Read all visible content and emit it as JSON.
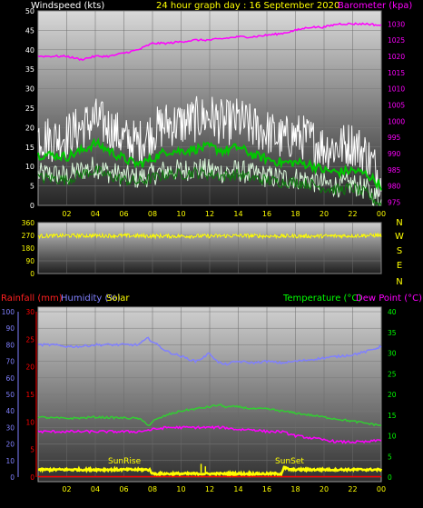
{
  "colors": {
    "windspeed": "#ffffff",
    "wind_avg": "#00c800",
    "wind_gust_fill": "#d8f5d8",
    "barometer": "#ff00ff",
    "wind_dir": "#ffff00",
    "rainfall": "#ff0000",
    "humidity": "#8080ff",
    "solar": "#ffff00",
    "temperature": "#00ff00",
    "temperature_line": "#33cc33",
    "dew_point": "#ff00ff",
    "panel_bg_top": "#e0e0e0",
    "panel_bg_bottom": "#282828"
  },
  "header": {
    "windspeed_label": "Windspeed (kts)",
    "title": "24 hour graph day : 16 September 2020",
    "barometer_label": "Barometer (kpa)"
  },
  "legend2": {
    "rainfall": "Rainfall (mm)",
    "humidity": "Humidity (%)",
    "solar": "Solar",
    "temperature": "Temperature (°C)",
    "dew_point": "Dew Point (°C)"
  },
  "annotations": {
    "sunrise": "SunRise",
    "sunset": "SunSet"
  },
  "chart_data": [
    {
      "type": "line",
      "name": "wind-barometer",
      "x_ticks": [
        "02",
        "04",
        "06",
        "08",
        "10",
        "12",
        "14",
        "16",
        "18",
        "20",
        "22",
        "00"
      ],
      "x_range": [
        0,
        24
      ],
      "y_left": {
        "label": "Windspeed (kts)",
        "range": [
          0,
          50
        ],
        "ticks": [
          0,
          5,
          10,
          15,
          20,
          25,
          30,
          35,
          40,
          45,
          50
        ]
      },
      "y_right": {
        "label": "Barometer (kpa)",
        "range": [
          974,
          1034
        ],
        "ticks": [
          975,
          980,
          985,
          990,
          995,
          1000,
          1005,
          1010,
          1015,
          1020,
          1025,
          1030
        ]
      },
      "series": [
        {
          "name": "Barometer",
          "axis": "right",
          "x": [
            0,
            1,
            2,
            3,
            4,
            5,
            6,
            7,
            8,
            9,
            10,
            11,
            12,
            13,
            14,
            15,
            16,
            17,
            18,
            19,
            20,
            21,
            22,
            23,
            24
          ],
          "y": [
            1020,
            1020,
            1020,
            1019,
            1020,
            1020,
            1021,
            1022,
            1024,
            1024,
            1024.5,
            1025,
            1025,
            1025.5,
            1026,
            1026,
            1026.5,
            1027,
            1028,
            1029,
            1029,
            1030,
            1030,
            1030,
            1029.5
          ]
        },
        {
          "name": "Windspeed",
          "axis": "left",
          "x": [
            0,
            1,
            2,
            3,
            4,
            5,
            6,
            7,
            8,
            9,
            10,
            11,
            12,
            13,
            14,
            15,
            16,
            17,
            18,
            19,
            20,
            21,
            22,
            23,
            24
          ],
          "y": [
            18,
            17,
            18,
            20,
            22,
            20,
            17,
            16,
            19,
            21,
            21,
            22,
            23,
            21,
            22,
            20,
            19,
            17,
            18,
            17,
            15,
            15,
            16,
            13,
            7
          ]
        },
        {
          "name": "Average",
          "axis": "left",
          "x": [
            0,
            1,
            2,
            3,
            4,
            5,
            6,
            7,
            8,
            9,
            10,
            11,
            12,
            13,
            14,
            15,
            16,
            17,
            18,
            19,
            20,
            21,
            22,
            23,
            24
          ],
          "y": [
            13,
            13,
            12.5,
            14,
            16,
            14,
            12,
            10.5,
            12,
            14,
            14,
            14.5,
            15,
            14,
            15,
            13,
            12,
            11,
            11,
            10.5,
            9,
            8.5,
            9,
            8,
            5
          ]
        },
        {
          "name": "Gust",
          "axis": "left",
          "x": [
            0,
            1,
            2,
            3,
            4,
            5,
            6,
            7,
            8,
            9,
            10,
            11,
            12,
            13,
            14,
            15,
            16,
            17,
            18,
            19,
            20,
            21,
            22,
            23,
            24
          ],
          "y": [
            8,
            8,
            7.5,
            9,
            10,
            8.5,
            7.5,
            7,
            8,
            9,
            9,
            9.5,
            9,
            8.5,
            9,
            8,
            7.5,
            7,
            7,
            6.5,
            5.5,
            5,
            5.5,
            4,
            1
          ]
        }
      ]
    },
    {
      "type": "line",
      "name": "wind-direction",
      "x_range": [
        0,
        24
      ],
      "y_ticks": [
        0,
        90,
        180,
        270,
        360
      ],
      "y_range": [
        0,
        360
      ],
      "right_labels": [
        "N",
        "W",
        "S",
        "E",
        "N"
      ],
      "series": [
        {
          "name": "Wind Direction",
          "x": [
            0,
            2,
            4,
            6,
            8,
            10,
            12,
            14,
            16,
            18,
            20,
            22,
            24
          ],
          "y": [
            265,
            268,
            268,
            268,
            265,
            265,
            265,
            268,
            265,
            265,
            265,
            268,
            270
          ]
        }
      ]
    },
    {
      "type": "line",
      "name": "weather",
      "x_ticks": [
        "02",
        "04",
        "06",
        "08",
        "10",
        "12",
        "14",
        "16",
        "18",
        "20",
        "22",
        "00"
      ],
      "x_range": [
        0,
        24
      ],
      "y_humidity": {
        "range": [
          0,
          100
        ],
        "ticks": [
          0,
          10,
          20,
          30,
          40,
          50,
          60,
          70,
          80,
          90,
          100
        ]
      },
      "y_rainfall": {
        "range": [
          0,
          30
        ],
        "ticks": [
          0,
          5,
          10,
          15,
          20,
          25,
          30
        ]
      },
      "y_temperature": {
        "range": [
          0,
          40
        ],
        "ticks": [
          0,
          5,
          10,
          15,
          20,
          25,
          30,
          35,
          40
        ]
      },
      "series": [
        {
          "name": "Humidity",
          "axis": "humidity",
          "x": [
            0,
            1,
            2,
            3,
            4,
            5,
            6,
            7,
            7.7,
            8,
            8.5,
            9,
            10,
            11,
            11.5,
            12,
            12.5,
            13,
            14,
            15,
            16,
            17,
            18,
            19,
            20,
            21,
            22,
            23,
            24
          ],
          "y": [
            80,
            80,
            79,
            79,
            80,
            80,
            80,
            80,
            84,
            82,
            79,
            76,
            73,
            70,
            72,
            75,
            70,
            68,
            70,
            69,
            70,
            69,
            70,
            71,
            72,
            73,
            74,
            76,
            79
          ]
        },
        {
          "name": "Temperature",
          "axis": "temperature",
          "x": [
            0,
            1,
            2,
            3,
            4,
            5,
            6,
            7,
            7.8,
            8,
            9,
            10,
            11,
            12,
            12.7,
            13,
            14,
            15,
            16,
            17,
            18,
            19,
            20,
            21,
            22,
            23,
            24
          ],
          "y": [
            14.5,
            14.3,
            14.2,
            14.3,
            14.5,
            14.4,
            14.3,
            14.2,
            12.5,
            13.5,
            15,
            16,
            16.5,
            17,
            17.5,
            17,
            17,
            16.5,
            16.5,
            16,
            15.5,
            15,
            14.5,
            14,
            13.5,
            13,
            12.5
          ]
        },
        {
          "name": "Dew Point",
          "axis": "temperature",
          "x": [
            0,
            1,
            2,
            3,
            4,
            5,
            6,
            7,
            8,
            9,
            10,
            11,
            12,
            13,
            14,
            15,
            16,
            17,
            18,
            19,
            20,
            21,
            22,
            23,
            24
          ],
          "y": [
            11,
            11,
            11,
            11,
            11,
            11,
            11,
            11,
            11.5,
            12,
            12,
            12,
            12,
            12,
            11.5,
            11.5,
            11,
            11,
            10,
            9.5,
            9,
            8.5,
            8.5,
            8.5,
            9
          ]
        },
        {
          "name": "Solar",
          "axis": "temperature",
          "x": [
            0,
            2,
            4,
            6,
            7.8,
            8,
            10,
            12,
            14,
            16,
            17,
            17.2,
            17.6,
            18,
            20,
            22,
            24
          ],
          "y": [
            1.8,
            1.8,
            1.8,
            1.8,
            1.8,
            0.8,
            0.8,
            0.8,
            0.8,
            0.8,
            0.8,
            2.3,
            1.8,
            1.8,
            1.8,
            1.8,
            1.8
          ]
        },
        {
          "name": "Rainfall",
          "axis": "rainfall",
          "x": [
            0,
            24
          ],
          "y": [
            0,
            0
          ]
        }
      ]
    }
  ]
}
